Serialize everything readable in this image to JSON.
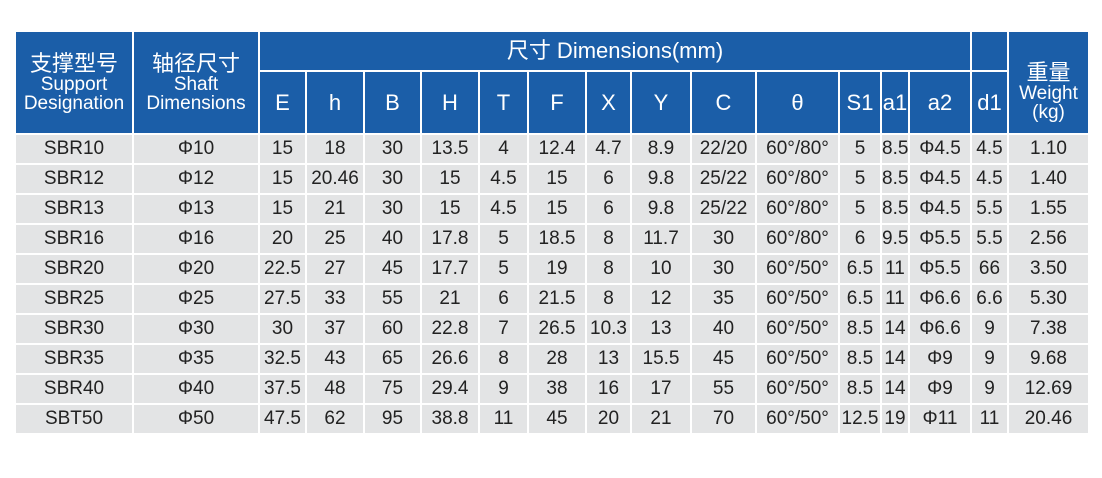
{
  "table": {
    "header": {
      "designation": {
        "zh": "支撑型号",
        "en": [
          "Support",
          "Designation"
        ]
      },
      "shaft": {
        "zh": "轴径尺寸",
        "en": [
          "Shaft",
          "Dimensions"
        ]
      },
      "dimensions": "尺寸 Dimensions(mm)",
      "weight": {
        "zh": "重量",
        "en": [
          "Weight",
          "(kg)"
        ]
      },
      "columns": [
        "E",
        "h",
        "B",
        "H",
        "T",
        "F",
        "X",
        "Y",
        "C",
        "θ",
        "S1",
        "a1",
        "a2",
        "d1"
      ]
    },
    "rows": [
      [
        "SBR10",
        "Φ10",
        "15",
        "18",
        "30",
        "13.5",
        "4",
        "12.4",
        "4.7",
        "8.9",
        "22/20",
        "60°/80°",
        "5",
        "8.5",
        "Φ4.5",
        "4.5",
        "1.10"
      ],
      [
        "SBR12",
        "Φ12",
        "15",
        "20.46",
        "30",
        "15",
        "4.5",
        "15",
        "6",
        "9.8",
        "25/22",
        "60°/80°",
        "5",
        "8.5",
        "Φ4.5",
        "4.5",
        "1.40"
      ],
      [
        "SBR13",
        "Φ13",
        "15",
        "21",
        "30",
        "15",
        "4.5",
        "15",
        "6",
        "9.8",
        "25/22",
        "60°/80°",
        "5",
        "8.5",
        "Φ4.5",
        "5.5",
        "1.55"
      ],
      [
        "SBR16",
        "Φ16",
        "20",
        "25",
        "40",
        "17.8",
        "5",
        "18.5",
        "8",
        "11.7",
        "30",
        "60°/80°",
        "6",
        "9.5",
        "Φ5.5",
        "5.5",
        "2.56"
      ],
      [
        "SBR20",
        "Φ20",
        "22.5",
        "27",
        "45",
        "17.7",
        "5",
        "19",
        "8",
        "10",
        "30",
        "60°/50°",
        "6.5",
        "11",
        "Φ5.5",
        "66",
        "3.50"
      ],
      [
        "SBR25",
        "Φ25",
        "27.5",
        "33",
        "55",
        "21",
        "6",
        "21.5",
        "8",
        "12",
        "35",
        "60°/50°",
        "6.5",
        "11",
        "Φ6.6",
        "6.6",
        "5.30"
      ],
      [
        "SBR30",
        "Φ30",
        "30",
        "37",
        "60",
        "22.8",
        "7",
        "26.5",
        "10.3",
        "13",
        "40",
        "60°/50°",
        "8.5",
        "14",
        "Φ6.6",
        "9",
        "7.38"
      ],
      [
        "SBR35",
        "Φ35",
        "32.5",
        "43",
        "65",
        "26.6",
        "8",
        "28",
        "13",
        "15.5",
        "45",
        "60°/50°",
        "8.5",
        "14",
        "Φ9",
        "9",
        "9.68"
      ],
      [
        "SBR40",
        "Φ40",
        "37.5",
        "48",
        "75",
        "29.4",
        "9",
        "38",
        "16",
        "17",
        "55",
        "60°/50°",
        "8.5",
        "14",
        "Φ9",
        "9",
        "12.69"
      ],
      [
        "SBT50",
        "Φ50",
        "47.5",
        "62",
        "95",
        "38.8",
        "11",
        "45",
        "20",
        "21",
        "70",
        "60°/50°",
        "12.5",
        "19",
        "Φ11",
        "11",
        "20.46"
      ]
    ]
  }
}
